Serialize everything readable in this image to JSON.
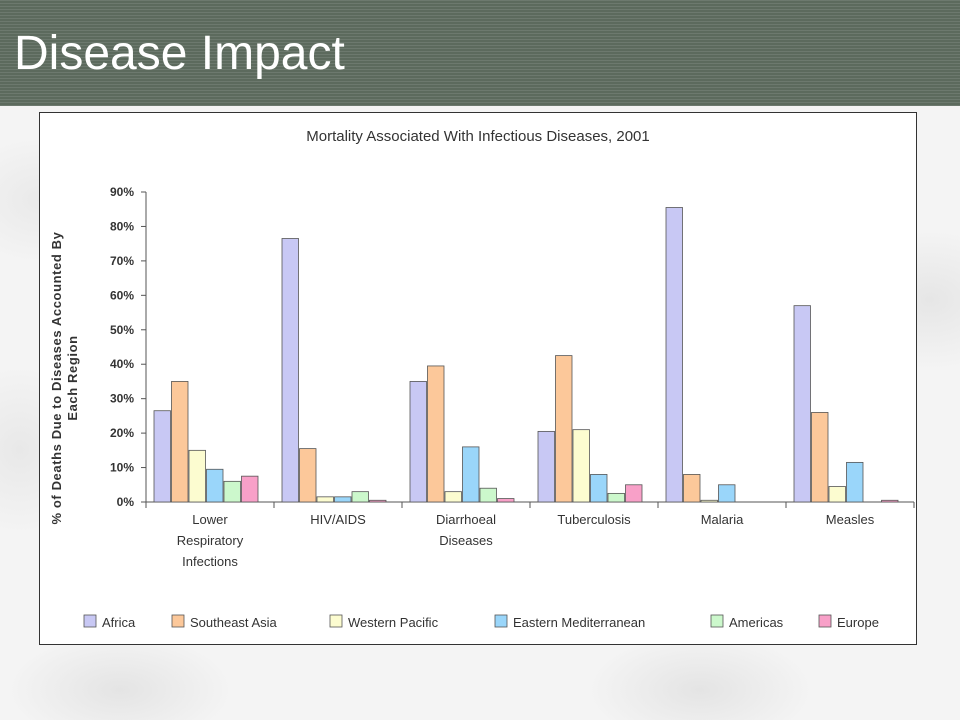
{
  "slide": {
    "title": "Disease Impact"
  },
  "colors": {
    "title_bar": "#5c6a5d",
    "frame_border": "#333333"
  },
  "chart_data": {
    "type": "bar",
    "title": "Mortality Associated With Infectious Diseases, 2001",
    "xlabel": "",
    "ylabel": "% of Deaths Due to Diseases Accounted By Each Region",
    "ylabel_lines": [
      "% of Deaths Due to Diseases Accounted By",
      "Each Region"
    ],
    "ylim": [
      0,
      90
    ],
    "yticks": [
      0,
      10,
      20,
      30,
      40,
      50,
      60,
      70,
      80,
      90
    ],
    "ytick_labels": [
      "0%",
      "10%",
      "20%",
      "30%",
      "40%",
      "50%",
      "60%",
      "70%",
      "80%",
      "90%"
    ],
    "categories": [
      "Lower Respiratory Infections",
      "HIV/AIDS",
      "Diarrhoeal Diseases",
      "Tuberculosis",
      "Malaria",
      "Measles"
    ],
    "category_label_lines": [
      [
        "Lower",
        "Respiratory",
        "Infections"
      ],
      [
        "HIV/AIDS"
      ],
      [
        "Diarrhoeal",
        "Diseases"
      ],
      [
        "Tuberculosis"
      ],
      [
        "Malaria"
      ],
      [
        "Measles"
      ]
    ],
    "legend_position": "bottom",
    "grid": false,
    "series": [
      {
        "name": "Africa",
        "color": "#c8c8f4",
        "values": [
          26.5,
          76.5,
          35,
          20.5,
          85.5,
          57
        ]
      },
      {
        "name": "Southeast Asia",
        "color": "#fcc89a",
        "values": [
          35,
          15.5,
          39.5,
          42.5,
          8,
          26
        ]
      },
      {
        "name": "Western Pacific",
        "color": "#fcfcd0",
        "values": [
          15,
          1.5,
          3,
          21,
          0.5,
          4.5
        ]
      },
      {
        "name": "Eastern Mediterranean",
        "color": "#9ad6fa",
        "values": [
          9.5,
          1.5,
          16,
          8,
          5,
          11.5
        ]
      },
      {
        "name": "Americas",
        "color": "#ccf8cc",
        "values": [
          6,
          3,
          4,
          2.5,
          0,
          0
        ]
      },
      {
        "name": "Europe",
        "color": "#f8a0c8",
        "values": [
          7.5,
          0.5,
          1,
          5,
          0,
          0.5
        ]
      }
    ]
  }
}
